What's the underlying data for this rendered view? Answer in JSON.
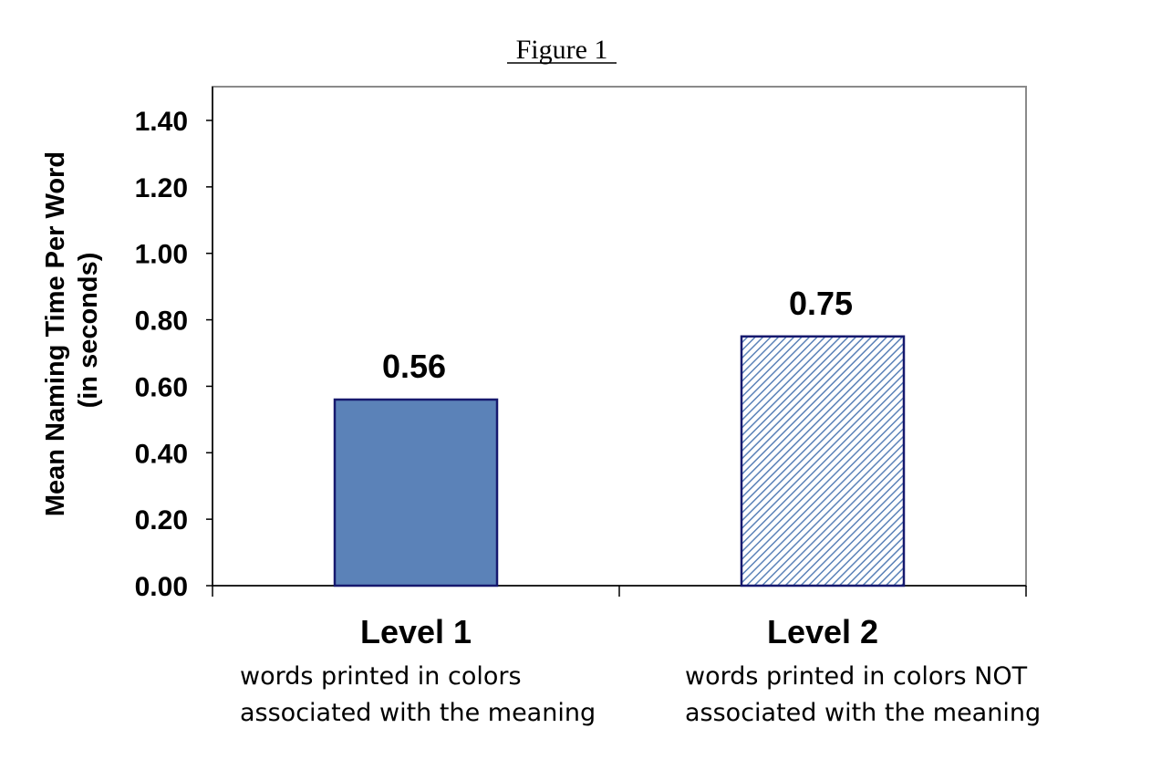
{
  "chart_data": {
    "type": "bar",
    "title": "Figure 1",
    "ylabel_lines": [
      "Mean Naming Time Per Word",
      "(in seconds)"
    ],
    "xlabel": "",
    "ylim": [
      0,
      1.4
    ],
    "yticks": [
      "0.00",
      "0.20",
      "0.40",
      "0.60",
      "0.80",
      "1.00",
      "1.20",
      "1.40"
    ],
    "yticks_values": [
      0,
      0.2,
      0.4,
      0.6,
      0.8,
      1.0,
      1.2,
      1.4
    ],
    "categories": [
      "Level 1",
      "Level 2"
    ],
    "category_descriptions": [
      [
        "words printed in colors",
        "associated with the meaning"
      ],
      [
        "words printed in colors NOT",
        "associated with the meaning"
      ]
    ],
    "values": [
      0.56,
      0.75
    ],
    "data_labels": [
      "0.56",
      "0.75"
    ],
    "bar_styles": [
      "solid",
      "diagonal-hatch"
    ],
    "grid": false,
    "colors": {
      "bar1_fill": "#5b82b8",
      "bar_stroke": "#16196e",
      "hatch": "#5b82b8",
      "plot_border": "#8a8a8a",
      "axis": "#000000"
    }
  }
}
